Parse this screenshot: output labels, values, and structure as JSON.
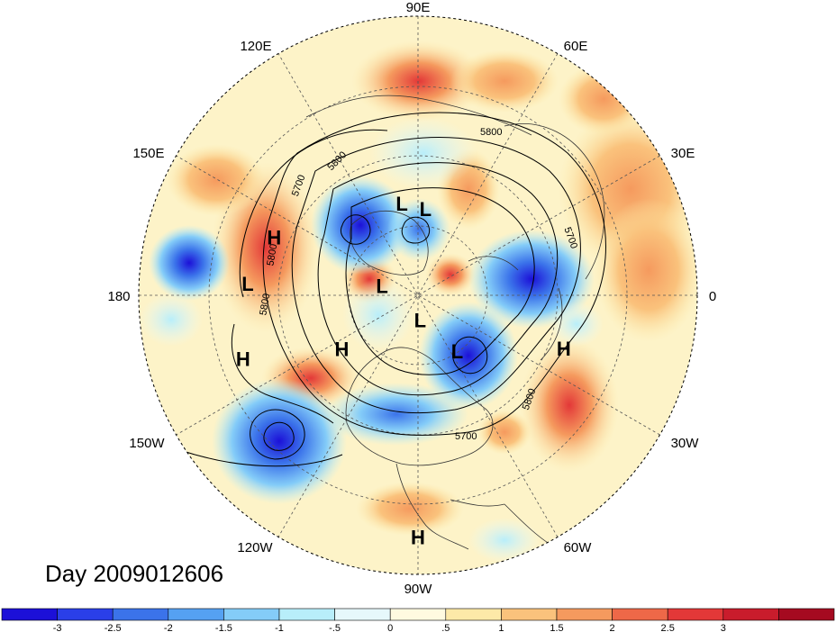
{
  "map": {
    "title_label": "Day 2009012606",
    "longitude_labels": [
      "90E",
      "60E",
      "30E",
      "0",
      "30W",
      "60W",
      "90W",
      "120W",
      "150W",
      "180",
      "150E",
      "120E"
    ],
    "pressure_centers": [
      {
        "type": "L",
        "lon": 100,
        "lat": 60
      },
      {
        "type": "L",
        "lon": 85,
        "lat": 62
      },
      {
        "type": "H",
        "lon": 158,
        "lat": 40
      },
      {
        "type": "L",
        "lon": 176,
        "lat": 35
      },
      {
        "type": "L",
        "lon": 165,
        "lat": 78
      },
      {
        "type": "L",
        "lon": -85,
        "lat": 82
      },
      {
        "type": "L",
        "lon": -55,
        "lat": 68
      },
      {
        "type": "H",
        "lon": -145,
        "lat": 60
      },
      {
        "type": "H",
        "lon": -160,
        "lat": 30
      },
      {
        "type": "H",
        "lon": -20,
        "lat": 40
      },
      {
        "type": "H",
        "lon": -90,
        "lat": 12
      }
    ],
    "contour_labels": [
      "5800",
      "5700",
      "5800",
      "5800",
      "5800",
      "5700",
      "5800",
      "5700"
    ]
  },
  "colorbar": {
    "colors": [
      "#1c10d8",
      "#2a3fe8",
      "#3b73ea",
      "#55a1f2",
      "#84ccf8",
      "#b8eefa",
      "#e6f8fb",
      "#fffae0",
      "#fde9a8",
      "#fac27c",
      "#f59a5e",
      "#ee6848",
      "#e33838",
      "#c91c2c",
      "#a50a20"
    ],
    "tick_labels": [
      "-3",
      "-2.5",
      "-2",
      "-1.5",
      "-1",
      "-.5",
      "0",
      ".5",
      "1",
      "1.5",
      "2",
      "2.5",
      "3"
    ]
  }
}
